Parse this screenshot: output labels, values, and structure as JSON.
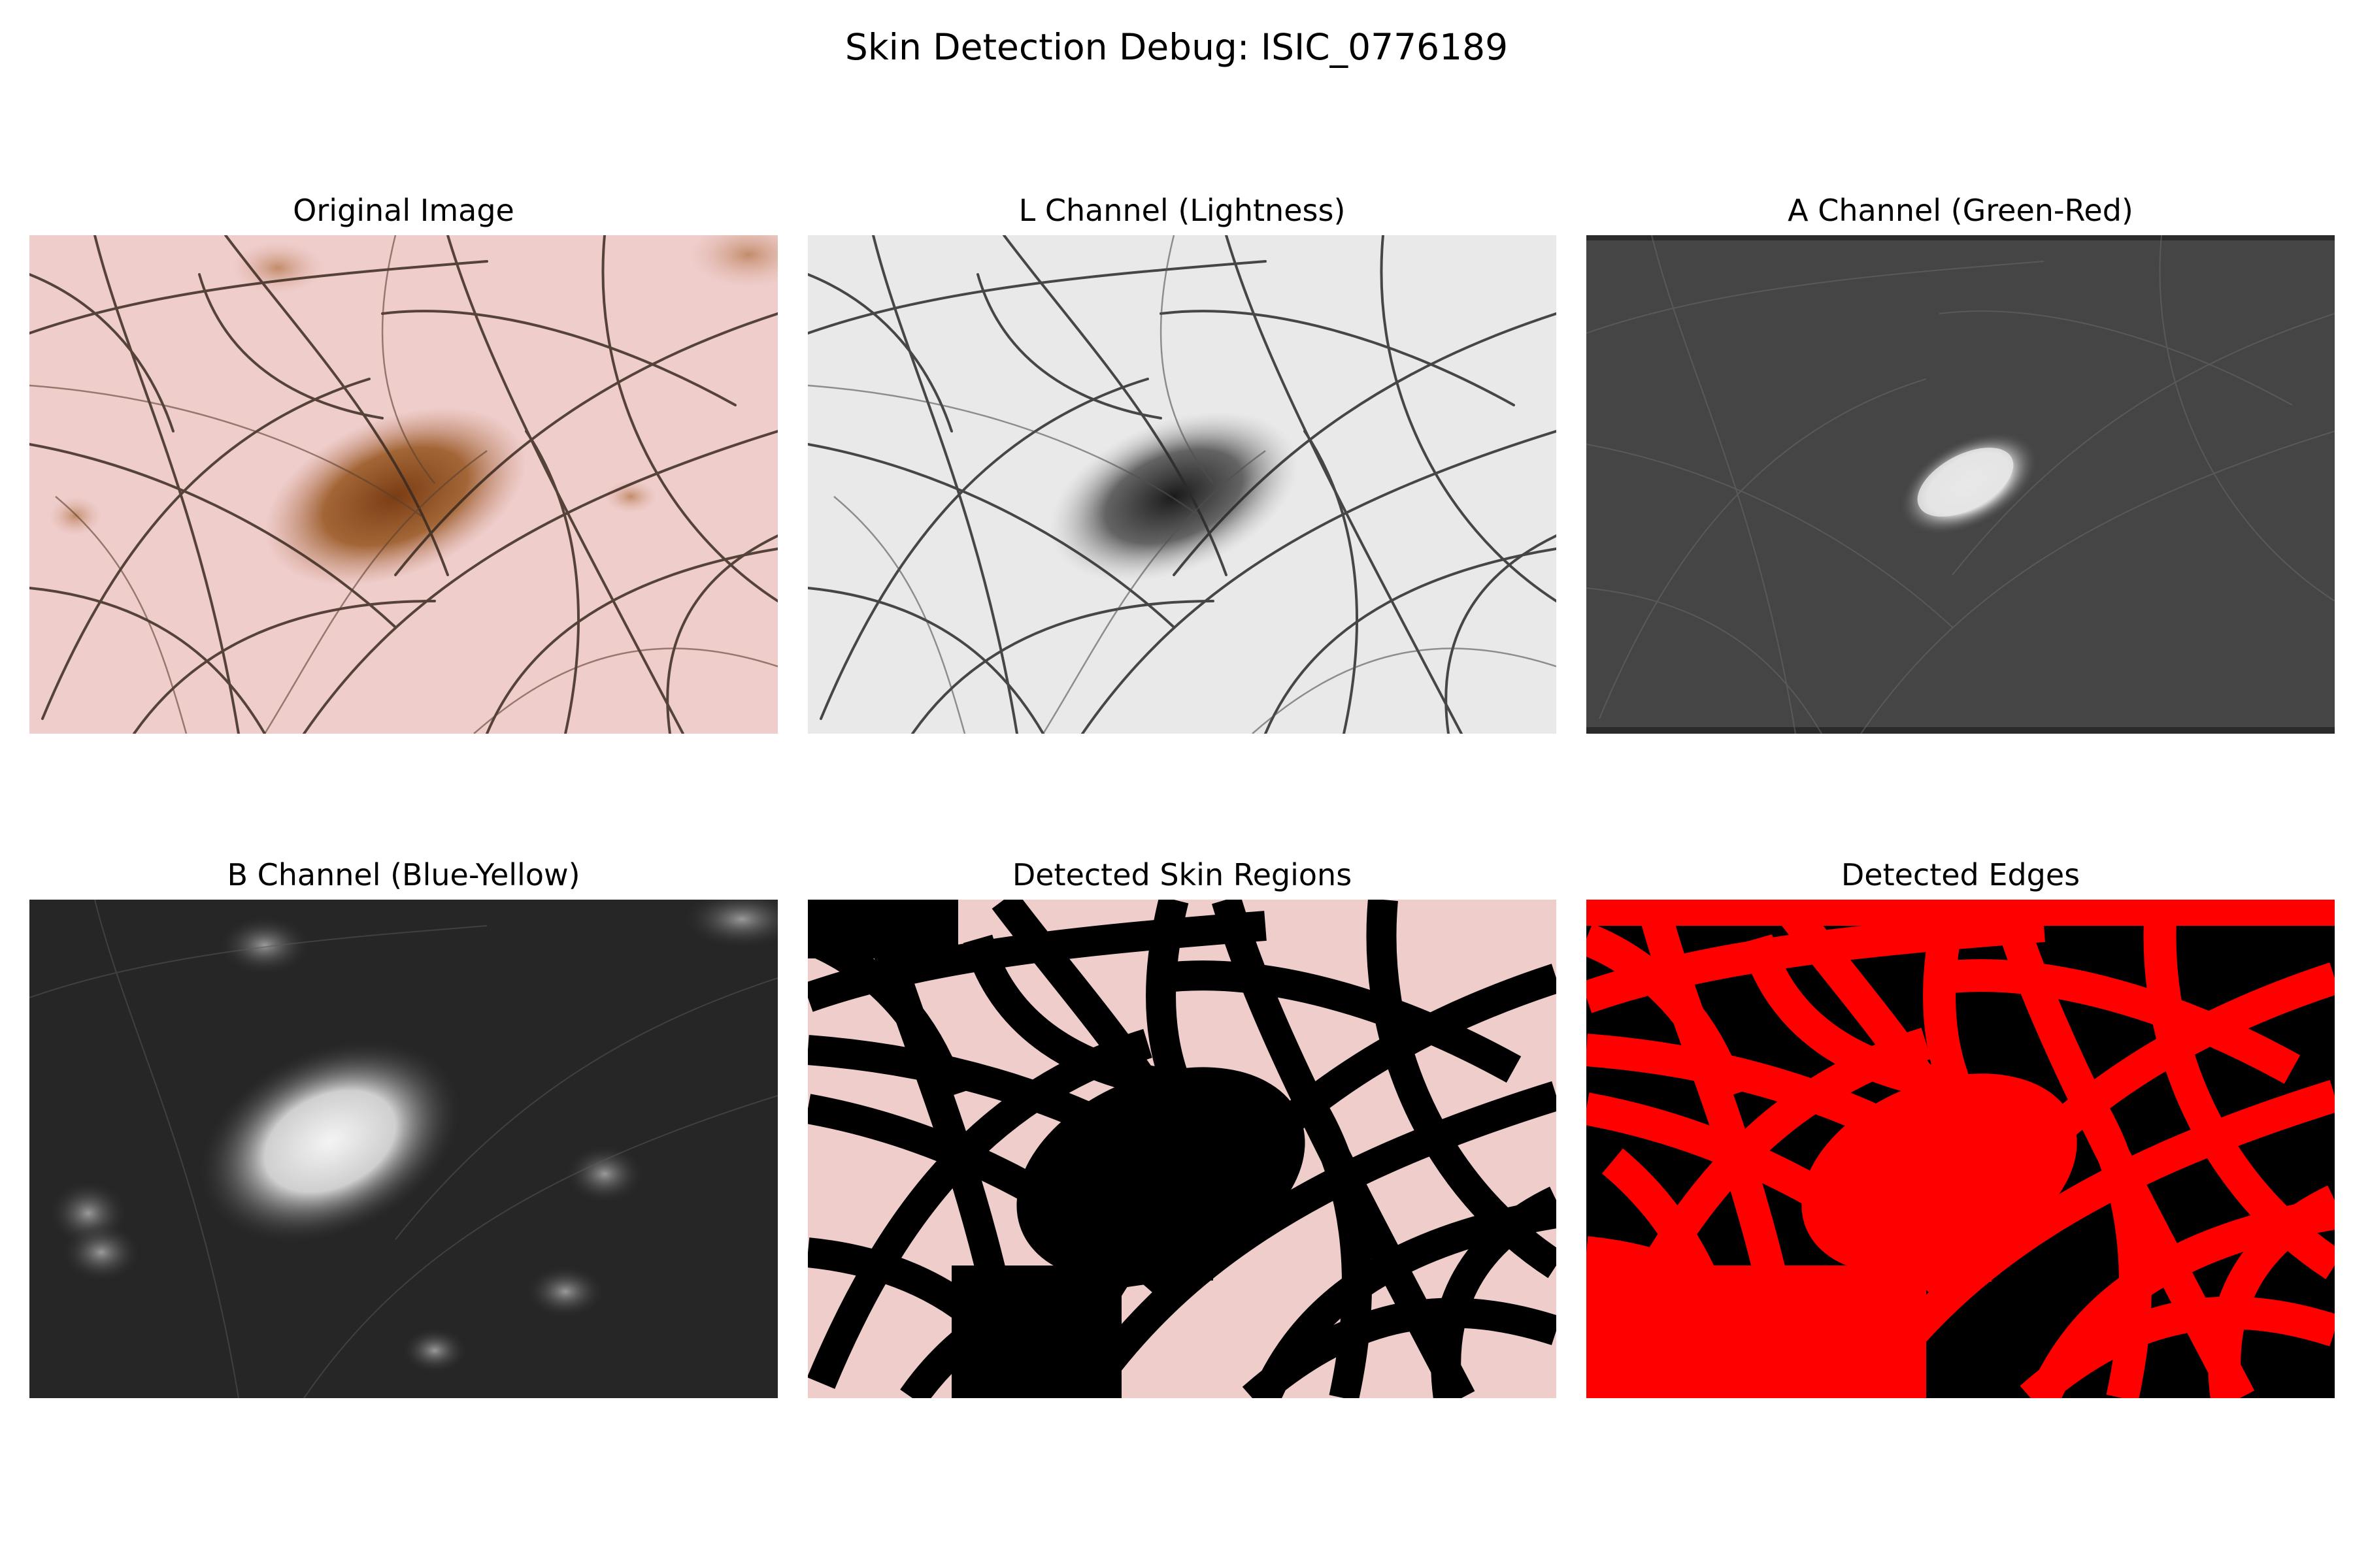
{
  "figure": {
    "title": "Skin Detection Debug: ISIC_0776189"
  },
  "panels": [
    {
      "title": "Original Image"
    },
    {
      "title": "L Channel (Lightness)"
    },
    {
      "title": "A Channel (Green-Red)"
    },
    {
      "title": "B Channel (Blue-Yellow)"
    },
    {
      "title": "Detected Skin Regions"
    },
    {
      "title": "Detected Edges"
    }
  ],
  "colors": {
    "skin": "#efcfcd",
    "lesion": "#8a4a1c",
    "hair": "#3b2a20",
    "edges_red": "#ff0000",
    "mask_black": "#000000"
  }
}
